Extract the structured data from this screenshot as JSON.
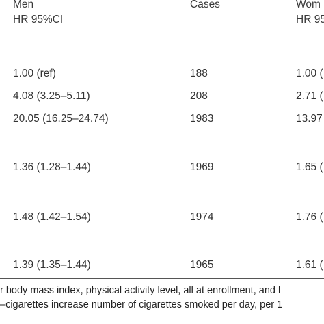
{
  "header": {
    "col1_line1": "Men",
    "col1_line2": "HR 95%CI",
    "col2_line1": "Cases",
    "col3_line1": "Wom",
    "col3_line2": "HR 95"
  },
  "rows": [
    {
      "men": "1.00 (ref)",
      "cases": "188",
      "women": "1.00 ("
    },
    {
      "men": "4.08 (3.25–5.11)",
      "cases": "208",
      "women": "2.71 ("
    },
    {
      "men": "20.05 (16.25–24.74)",
      "cases": "1983",
      "women": "13.97"
    },
    {
      "men": "1.36 (1.28–1.44)",
      "cases": "1969",
      "women": "1.65 ("
    },
    {
      "men": "1.48 (1.42–1.54)",
      "cases": "1974",
      "women": "1.76 ("
    },
    {
      "men": "1.39 (1.35–1.44)",
      "cases": "1965",
      "women": "1.61 ("
    }
  ],
  "footnotes": {
    "line1": "r body mass index, physical activity level, all at enrollment, and l",
    "line2": "–cigarettes increase number of cigarettes smoked per day, per 1"
  }
}
